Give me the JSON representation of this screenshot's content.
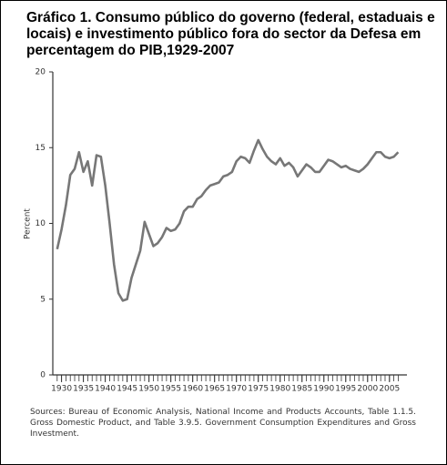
{
  "chart_data": {
    "type": "line",
    "title": "Gráfico 1. Consumo público do governo (federal, estaduais e locais) e investimento público fora do sector da Defesa em percentagem do PIB,1929-2007",
    "y_label": "Percent",
    "source": "Sources: Bureau of Economic Analysis, National Income and Products Accounts, Table 1.1.5. Gross Domestic Product, and Table 3.9.5. Government Consumption Expenditures and Gross Investment.",
    "x": [
      1929,
      1930,
      1931,
      1932,
      1933,
      1934,
      1935,
      1936,
      1937,
      1938,
      1939,
      1940,
      1941,
      1942,
      1943,
      1944,
      1945,
      1946,
      1947,
      1948,
      1949,
      1950,
      1951,
      1952,
      1953,
      1954,
      1955,
      1956,
      1957,
      1958,
      1959,
      1960,
      1961,
      1962,
      1963,
      1964,
      1965,
      1966,
      1967,
      1968,
      1969,
      1970,
      1971,
      1972,
      1973,
      1974,
      1975,
      1976,
      1977,
      1978,
      1979,
      1980,
      1981,
      1982,
      1983,
      1984,
      1985,
      1986,
      1987,
      1988,
      1989,
      1990,
      1991,
      1992,
      1993,
      1994,
      1995,
      1996,
      1997,
      1998,
      1999,
      2000,
      2001,
      2002,
      2003,
      2004,
      2005,
      2006,
      2007
    ],
    "series": [
      {
        "color": "#777777",
        "values": [
          8.3,
          9.6,
          11.2,
          13.2,
          13.6,
          14.7,
          13.4,
          14.1,
          12.5,
          14.5,
          14.4,
          12.5,
          10.0,
          7.3,
          5.4,
          4.9,
          5.0,
          6.4,
          7.3,
          8.2,
          10.1,
          9.3,
          8.5,
          8.7,
          9.1,
          9.7,
          9.5,
          9.6,
          10.0,
          10.8,
          11.1,
          11.1,
          11.6,
          11.8,
          12.2,
          12.5,
          12.6,
          12.7,
          13.1,
          13.2,
          13.4,
          14.1,
          14.4,
          14.3,
          14.0,
          14.8,
          15.5,
          14.9,
          14.4,
          14.1,
          13.9,
          14.3,
          13.8,
          14.0,
          13.7,
          13.1,
          13.5,
          13.9,
          13.7,
          13.4,
          13.4,
          13.8,
          14.2,
          14.1,
          13.9,
          13.7,
          13.8,
          13.6,
          13.5,
          13.4,
          13.6,
          13.9,
          14.3,
          14.7,
          14.7,
          14.4,
          14.3,
          14.4,
          14.7
        ]
      }
    ],
    "xlim": [
      1928,
      2009
    ],
    "xticks": [
      1930,
      1935,
      1940,
      1945,
      1950,
      1955,
      1960,
      1965,
      1970,
      1975,
      1980,
      1985,
      1990,
      1995,
      2000,
      2005
    ],
    "ylim": [
      0,
      20
    ],
    "yticks": [
      0,
      5,
      10,
      15,
      20
    ],
    "grid": false
  }
}
